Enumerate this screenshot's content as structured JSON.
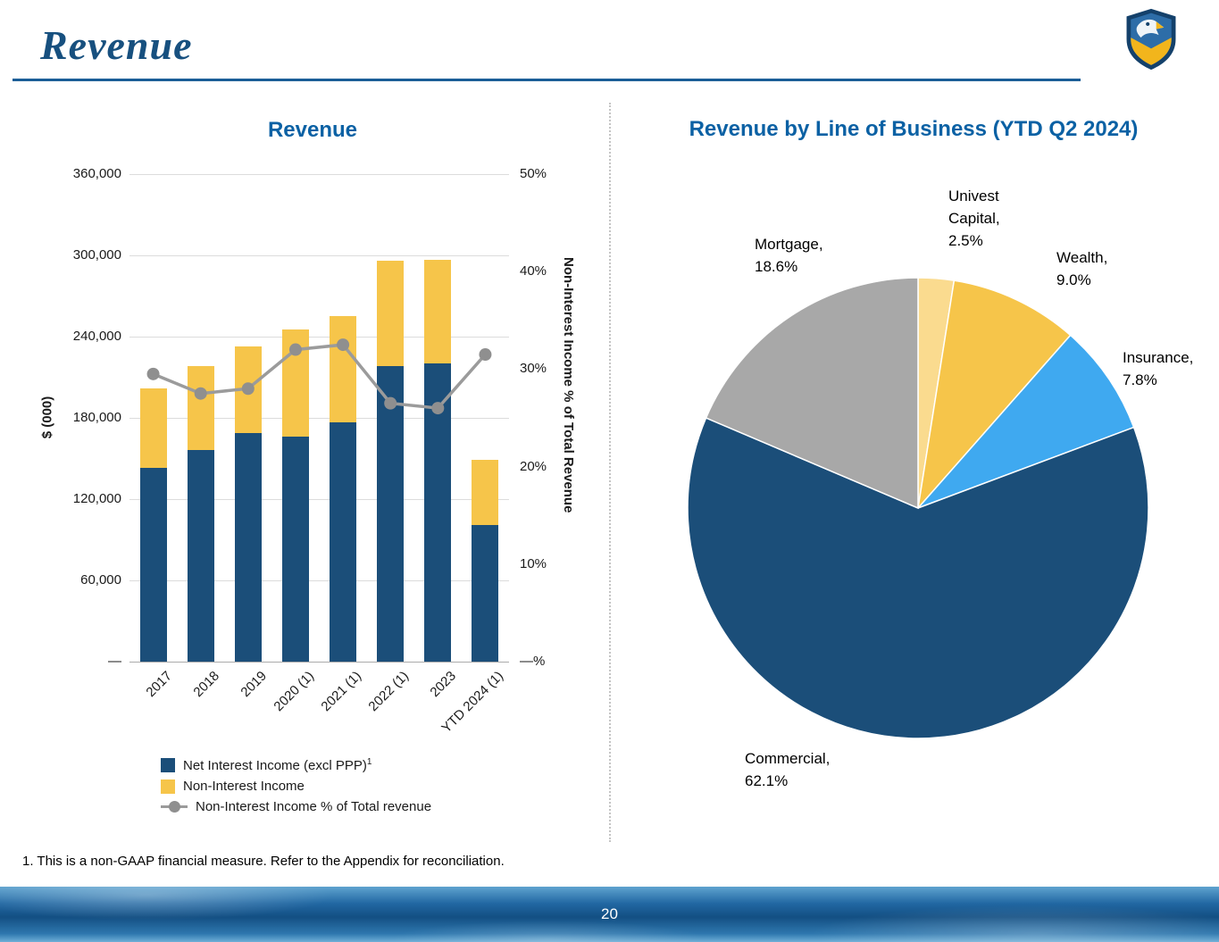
{
  "page": {
    "title": "Revenue",
    "footnote": "1. This is a non-GAAP financial measure. Refer to the Appendix for reconciliation.",
    "page_number": "20"
  },
  "colors": {
    "navy": "#1B4E79",
    "gold": "#F6C54A",
    "pale_gold": "#FADB8F",
    "light_blue": "#3FA9F0",
    "gray": "#A8A8A8",
    "line_gray": "#9B9B9B",
    "marker_gray": "#8F8F8F",
    "title_blue": "#0B61A4",
    "heading_navy": "#17507F",
    "grid": "#DCDCDC"
  },
  "chart_data": [
    {
      "type": "bar",
      "title": "Revenue",
      "ylabel": "$ (000)",
      "ylabel_right": "Non-Interest Income % of Total Revenue",
      "categories": [
        "2017",
        "2018",
        "2019",
        "2020 (1)",
        "2021 (1)",
        "2022 (1)",
        "2023",
        "YTD 2024 (1)"
      ],
      "series": [
        {
          "name": "Net Interest Income (excl PPP)",
          "color_key": "navy",
          "values": [
            143000,
            156000,
            169000,
            166000,
            177000,
            218000,
            220000,
            101000
          ]
        },
        {
          "name": "Non-Interest Income",
          "color_key": "gold",
          "values": [
            59000,
            62000,
            64000,
            79000,
            78000,
            78000,
            77000,
            48000
          ]
        }
      ],
      "line_series": {
        "name": "Non-Interest Income % of Total revenue",
        "color_key": "line_gray",
        "values": [
          29.5,
          27.5,
          28,
          32,
          32.5,
          26.5,
          26,
          31.5
        ]
      },
      "left_axis": {
        "max": 360000,
        "ticks": [
          "360,000",
          "300,000",
          "240,000",
          "180,000",
          "120,000",
          "60,000",
          "—"
        ]
      },
      "right_axis": {
        "max": 50,
        "ticks": [
          "50%",
          "40%",
          "30%",
          "20%",
          "10%",
          "—%"
        ]
      },
      "legend_position": "bottom",
      "grid": true
    },
    {
      "type": "pie",
      "title": "Revenue by Line of Business (YTD Q2 2024)",
      "slices": [
        {
          "label": "Univest Capital",
          "value": 2.5,
          "color_key": "pale_gold"
        },
        {
          "label": "Wealth",
          "value": 9.0,
          "color_key": "gold"
        },
        {
          "label": "Insurance",
          "value": 7.8,
          "color_key": "light_blue"
        },
        {
          "label": "Commercial",
          "value": 62.1,
          "color_key": "navy"
        },
        {
          "label": "Mortgage",
          "value": 18.6,
          "color_key": "gray"
        }
      ],
      "labels": {
        "univest": "Univest\nCapital,\n2.5%",
        "wealth": "Wealth,\n9.0%",
        "insurance": "Insurance,\n7.8%",
        "commercial": "Commercial,\n62.1%",
        "mortgage": "Mortgage,\n18.6%"
      }
    }
  ],
  "legend": {
    "items": [
      {
        "label": "Net Interest Income (excl PPP)",
        "sup": "1",
        "swatch": "square",
        "color_key": "navy"
      },
      {
        "label": "Non-Interest Income",
        "sup": "",
        "swatch": "square",
        "color_key": "gold"
      },
      {
        "label": "Non-Interest Income % of Total revenue",
        "sup": "",
        "swatch": "line",
        "color_key": "line_gray"
      }
    ]
  }
}
